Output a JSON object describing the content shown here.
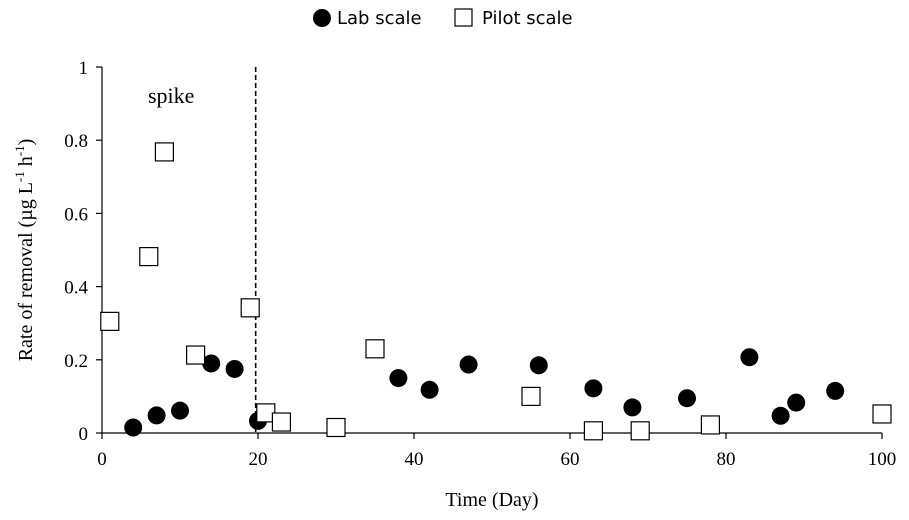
{
  "chart_data": {
    "type": "scatter",
    "title": "",
    "xlabel": "Time (Day)",
    "ylabel_main": "Rate of removal (µg L",
    "ylabel_exp1": "-1",
    "ylabel_mid": " h",
    "ylabel_exp2": "-1",
    "ylabel_end": ")",
    "xlim": [
      0,
      100
    ],
    "ylim": [
      0,
      1
    ],
    "x_ticks": [
      0,
      20,
      40,
      60,
      80,
      100
    ],
    "y_ticks": [
      0,
      0.2,
      0.4,
      0.6,
      0.8,
      1
    ],
    "y_tick_labels": [
      "0",
      "0.2",
      "0.4",
      "0.6",
      "0.8",
      "1"
    ],
    "x_tick_labels": [
      "0",
      "20",
      "40",
      "60",
      "80",
      "100"
    ],
    "grid": false,
    "legend_position": "top-center",
    "annotation": {
      "text": "spike",
      "vline_x": 19.7
    },
    "series": [
      {
        "name": "Lab scale",
        "marker": "filled-circle",
        "color": "#000000",
        "points": [
          {
            "x": 4,
            "y": 0.015
          },
          {
            "x": 7,
            "y": 0.048
          },
          {
            "x": 10,
            "y": 0.061
          },
          {
            "x": 14,
            "y": 0.19
          },
          {
            "x": 17,
            "y": 0.175
          },
          {
            "x": 20,
            "y": 0.033
          },
          {
            "x": 38,
            "y": 0.15
          },
          {
            "x": 42,
            "y": 0.118
          },
          {
            "x": 47,
            "y": 0.187
          },
          {
            "x": 56,
            "y": 0.185
          },
          {
            "x": 63,
            "y": 0.122
          },
          {
            "x": 68,
            "y": 0.07
          },
          {
            "x": 75,
            "y": 0.095
          },
          {
            "x": 83,
            "y": 0.207
          },
          {
            "x": 87,
            "y": 0.047
          },
          {
            "x": 89,
            "y": 0.083
          },
          {
            "x": 94,
            "y": 0.115
          }
        ]
      },
      {
        "name": "Pilot scale",
        "marker": "open-square",
        "color": "#000000",
        "points": [
          {
            "x": 1,
            "y": 0.305
          },
          {
            "x": 6,
            "y": 0.482
          },
          {
            "x": 8,
            "y": 0.768
          },
          {
            "x": 12,
            "y": 0.213
          },
          {
            "x": 19,
            "y": 0.342
          },
          {
            "x": 21,
            "y": 0.055
          },
          {
            "x": 23,
            "y": 0.03
          },
          {
            "x": 30,
            "y": 0.015
          },
          {
            "x": 35,
            "y": 0.23
          },
          {
            "x": 55,
            "y": 0.1
          },
          {
            "x": 63,
            "y": 0.006
          },
          {
            "x": 69,
            "y": 0.006
          },
          {
            "x": 78,
            "y": 0.022
          },
          {
            "x": 100,
            "y": 0.052
          }
        ]
      }
    ]
  }
}
